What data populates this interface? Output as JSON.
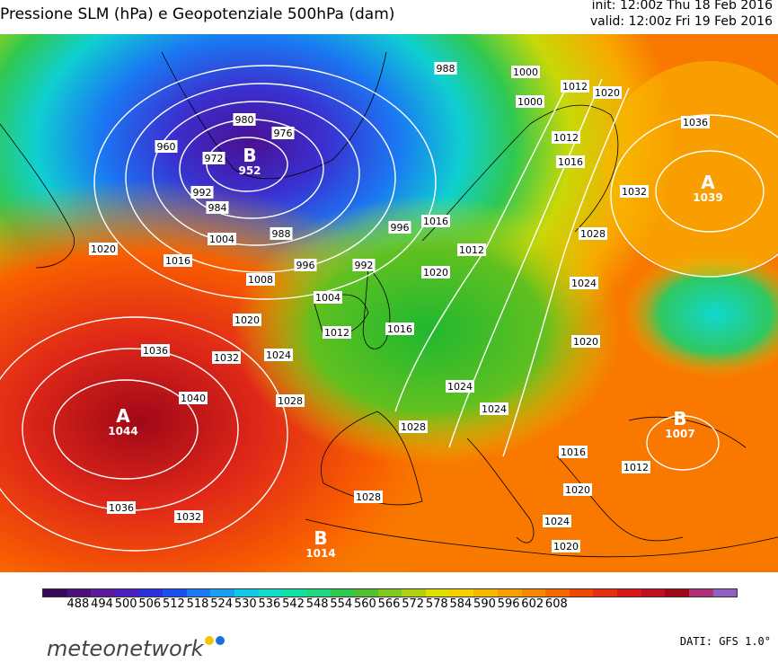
{
  "header": {
    "title": "Pressione SLM (hPa) e Geopotenziale 500hPa (dam)",
    "init": "init: 12:00z Thu 18 Feb 2016",
    "valid": "valid: 12:00z Fri 19 Feb 2016"
  },
  "colors": {
    "geopotential_scale": [
      "#3a0a5a",
      "#4a0f7a",
      "#5a1a9e",
      "#4a20c0",
      "#2a30dc",
      "#1a50ee",
      "#1a78f2",
      "#1aa0f0",
      "#10c8e8",
      "#10dcc8",
      "#10e0a0",
      "#20d880",
      "#30c850",
      "#50c030",
      "#80c820",
      "#b0d010",
      "#e0e000",
      "#f5d000",
      "#f8b800",
      "#f8a000",
      "#f88800",
      "#f86800",
      "#f04800",
      "#e83010",
      "#d81818",
      "#c01020",
      "#a00818",
      "#b0307a",
      "#9060c0"
    ],
    "isobar": "#ffffff",
    "coastline": "#000000"
  },
  "colorbar": {
    "ticks": [
      "488",
      "494",
      "500",
      "506",
      "512",
      "518",
      "524",
      "530",
      "536",
      "542",
      "548",
      "554",
      "560",
      "566",
      "572",
      "578",
      "584",
      "590",
      "596",
      "602",
      "608"
    ]
  },
  "map": {
    "isobar_labels": [
      "980",
      "976",
      "972",
      "960",
      "992",
      "984",
      "988",
      "1004",
      "996",
      "1020",
      "1016",
      "1008",
      "992",
      "1004",
      "1012",
      "1020",
      "1036",
      "1032",
      "1024",
      "1028",
      "1040",
      "1036",
      "1032",
      "1028",
      "1024",
      "1016",
      "1024",
      "1020",
      "1028",
      "1024",
      "1020",
      "1012",
      "1016",
      "1020",
      "1024",
      "1012",
      "1016",
      "1020",
      "1032",
      "1036",
      "988",
      "1000",
      "1012",
      "1020",
      "1000",
      "1012",
      "1016",
      "996",
      "1028"
    ],
    "centers": [
      {
        "letter": "B",
        "value": "952"
      },
      {
        "letter": "A",
        "value": "1039"
      },
      {
        "letter": "A",
        "value": "1044"
      },
      {
        "letter": "B",
        "value": "1007"
      },
      {
        "letter": "B",
        "value": "1014"
      }
    ]
  },
  "footer": {
    "logo_text": "meteonetwork",
    "logo_dots": [
      "#f5c400",
      "#1a70d8"
    ],
    "source": "DATI: GFS 1.0°"
  }
}
